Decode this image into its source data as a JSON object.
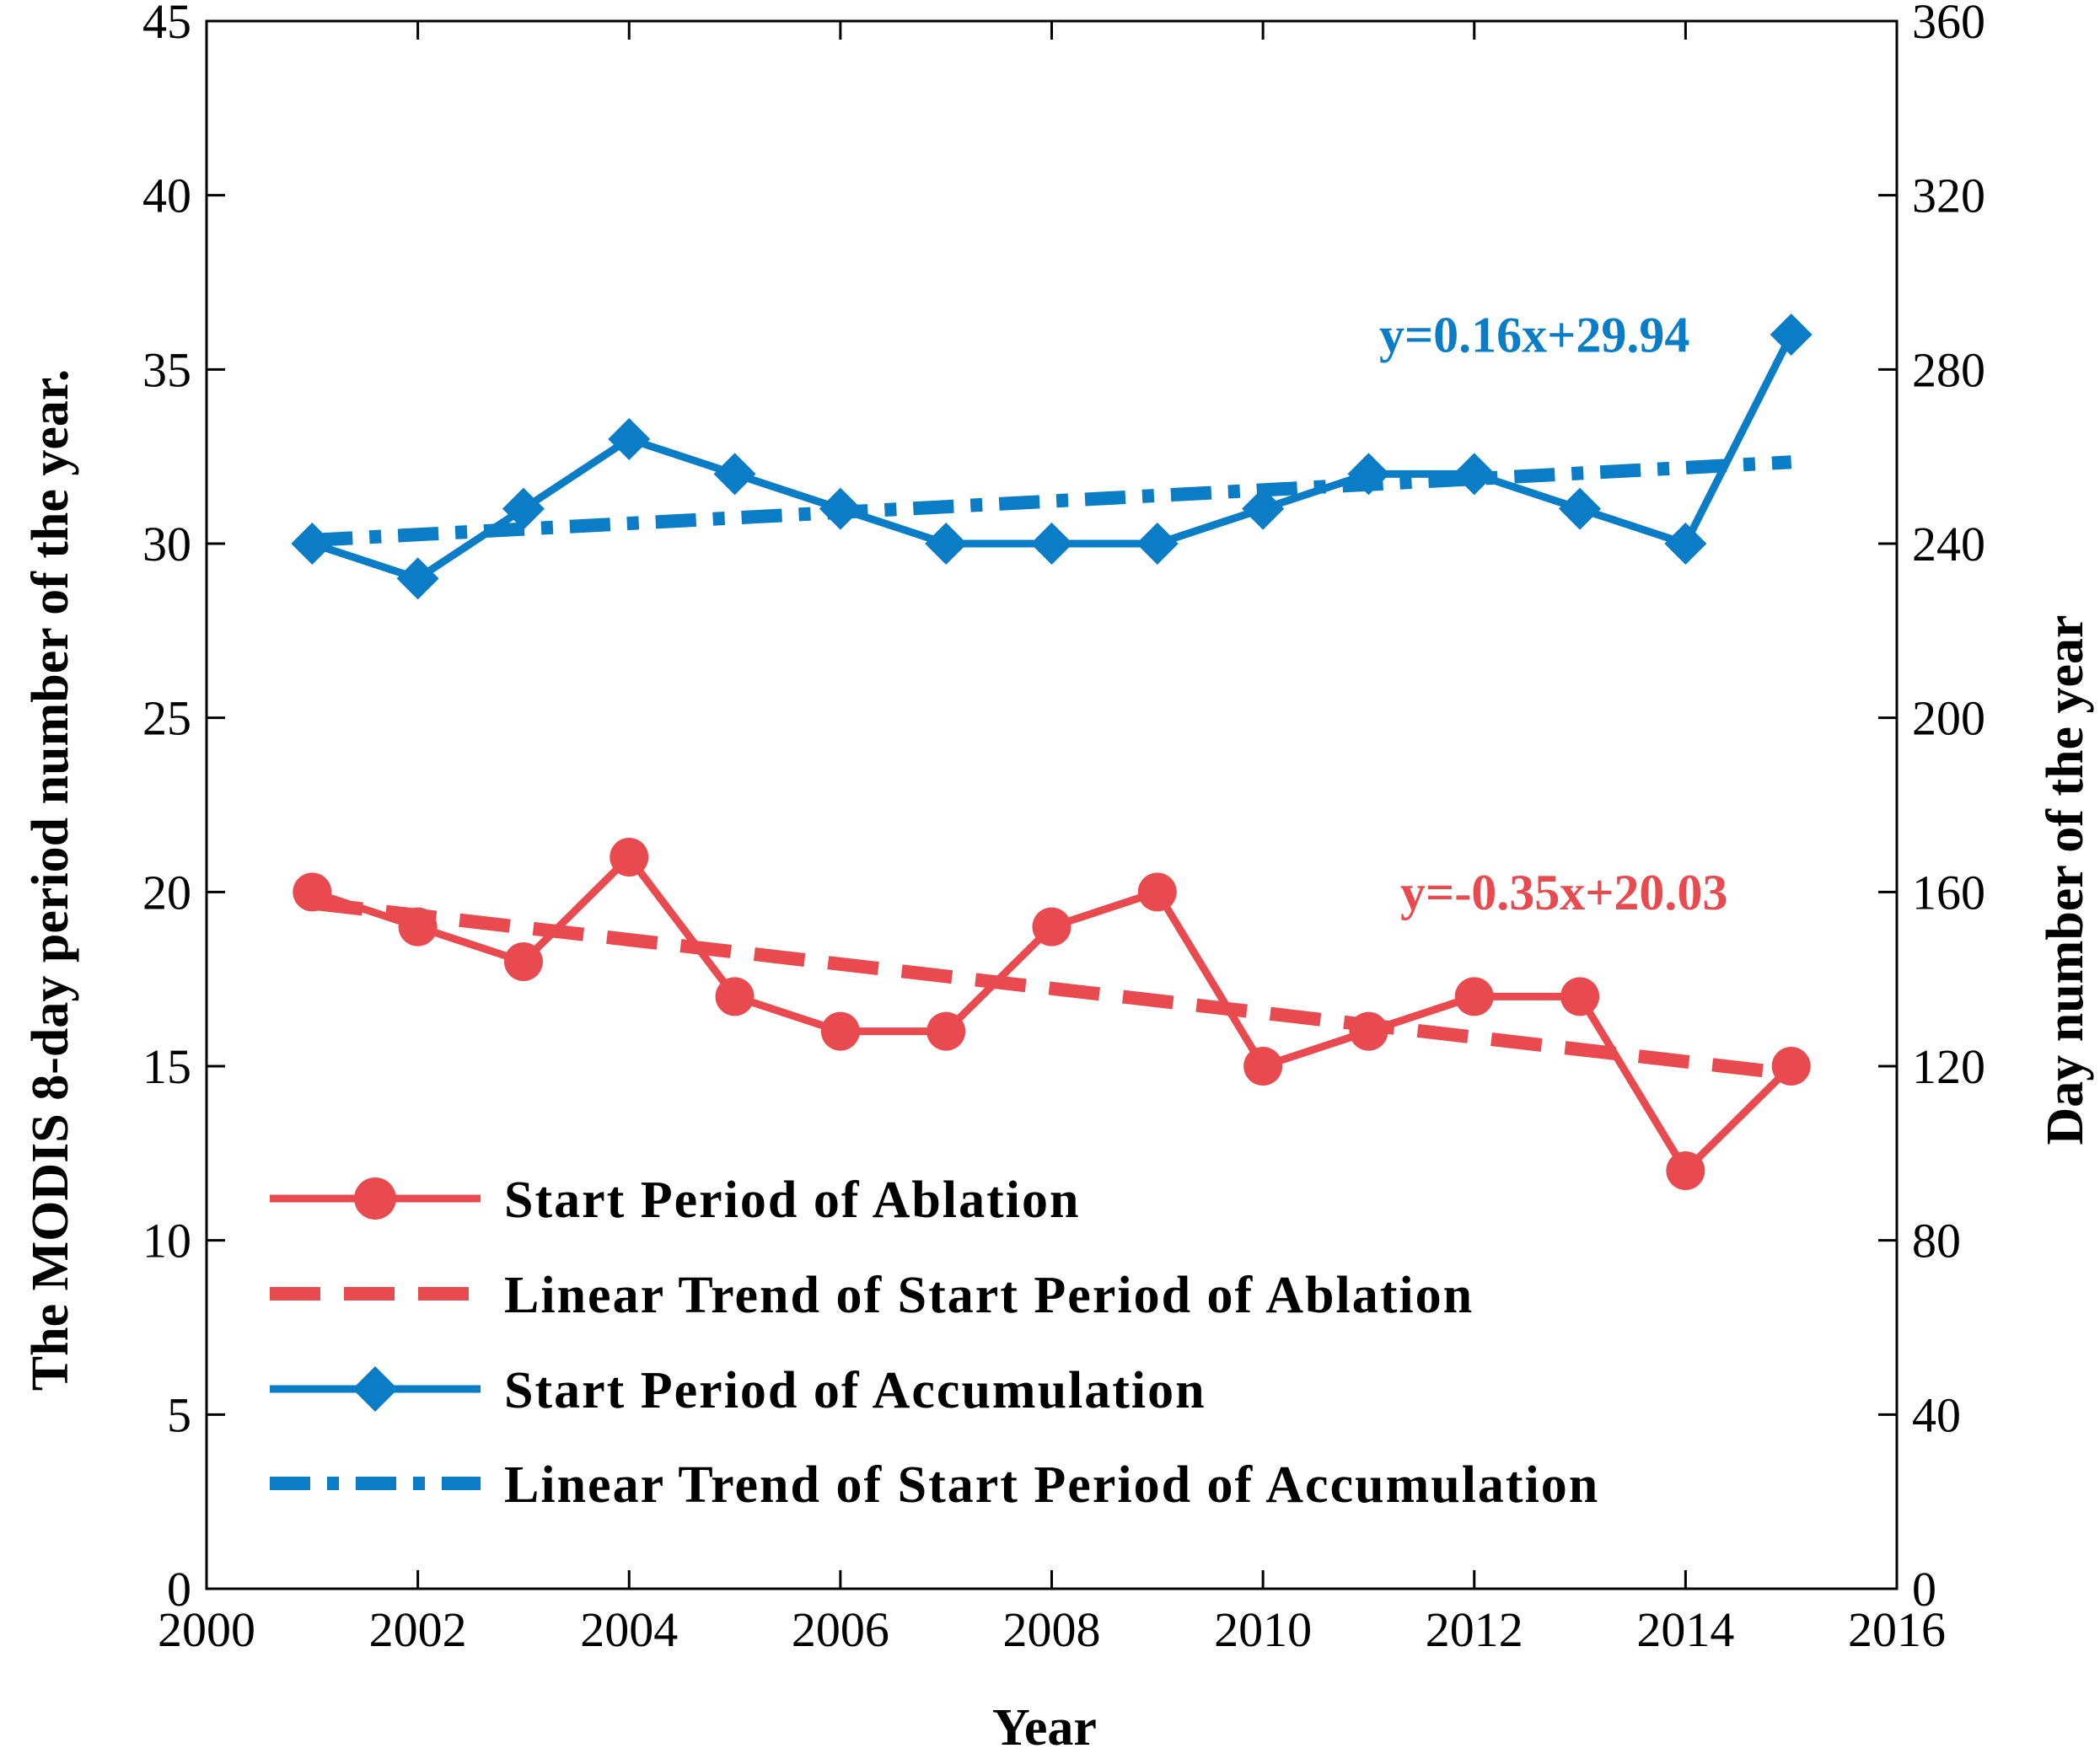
{
  "chart_data": {
    "type": "line",
    "title": "",
    "xlabel": "Year",
    "ylabel": "The MODIS 8-day period number of the year.",
    "y2label": "Day number of the year",
    "xlim": [
      2000,
      2016
    ],
    "ylim": [
      0,
      45
    ],
    "y2lim": [
      0,
      360
    ],
    "x_ticks": [
      "2000",
      "2002",
      "2004",
      "2006",
      "2008",
      "2010",
      "2012",
      "2014",
      "2016"
    ],
    "y_ticks": [
      "0",
      "5",
      "10",
      "15",
      "20",
      "25",
      "30",
      "35",
      "40",
      "45"
    ],
    "y2_ticks": [
      "0",
      "40",
      "80",
      "120",
      "160",
      "200",
      "240",
      "280",
      "320",
      "360"
    ],
    "x": [
      2001,
      2002,
      2003,
      2004,
      2005,
      2006,
      2007,
      2008,
      2009,
      2010,
      2011,
      2012,
      2013,
      2014,
      2015
    ],
    "series": [
      {
        "name": "Start Period of Ablation",
        "kind": "line-marker",
        "marker": "circle",
        "color": "#e84a4f",
        "values": [
          20,
          19,
          18,
          21,
          17,
          16,
          16,
          19,
          20,
          15,
          16,
          17,
          17,
          12,
          15
        ]
      },
      {
        "name": "Linear Trend of Start Period of Ablation",
        "kind": "trend",
        "dash": "dashed",
        "color": "#e84a4f",
        "slope": -0.35,
        "intercept": 20.03
      },
      {
        "name": "Start Period of Accumulation",
        "kind": "line-marker",
        "marker": "diamond",
        "color": "#0a7dc6",
        "values": [
          30,
          29,
          31,
          33,
          32,
          31,
          30,
          30,
          30,
          31,
          32,
          32,
          31,
          30,
          36
        ]
      },
      {
        "name": "Linear Trend of Start Period of Accumulation",
        "kind": "trend",
        "dash": "dash-dot",
        "color": "#0a7dc6",
        "slope": 0.16,
        "intercept": 29.94
      }
    ],
    "annotations": [
      {
        "text": "y=0.16x+29.94",
        "color": "#0a7dc6",
        "x": 2011.1,
        "y": 35.5
      },
      {
        "text": "y=-0.35x+20.03",
        "color": "#e84a4f",
        "x": 2011.3,
        "y": 19.5
      }
    ],
    "legend": {
      "position": "bottom-left"
    }
  }
}
